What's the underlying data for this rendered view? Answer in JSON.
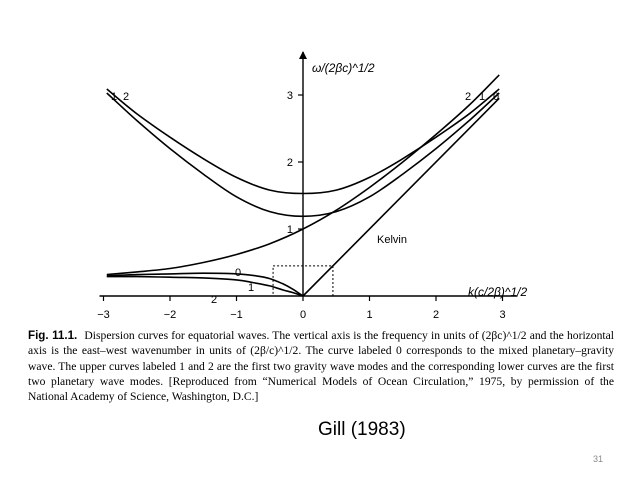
{
  "chart_data": {
    "type": "line",
    "title": "",
    "xlabel": "k(c/2β)^1/2",
    "ylabel": "ω/(2βc)^1/2",
    "xlim": [
      -3,
      3
    ],
    "ylim": [
      0,
      3.2
    ],
    "x_ticks": [
      -3,
      -2,
      -1,
      0,
      1,
      2,
      3
    ],
    "y_ticks": [
      1,
      2,
      3
    ],
    "grid": false,
    "series": [
      {
        "name": "2",
        "group": "gravity",
        "x": [
          -3,
          -2.5,
          -2,
          -1.5,
          -1,
          -0.5,
          0,
          0.5,
          1,
          1.5,
          2,
          2.5,
          3
        ],
        "y": [
          3.09,
          2.72,
          2.37,
          2.05,
          1.77,
          1.58,
          1.53,
          1.58,
          1.77,
          2.05,
          2.37,
          2.72,
          3.09
        ]
      },
      {
        "name": "1",
        "group": "gravity",
        "x": [
          -3,
          -2.5,
          -2,
          -1.5,
          -1,
          -0.5,
          0,
          0.5,
          1,
          1.5,
          2,
          2.5,
          3
        ],
        "y": [
          3.03,
          2.62,
          2.2,
          1.82,
          1.48,
          1.26,
          1.19,
          1.26,
          1.48,
          1.82,
          2.2,
          2.62,
          3.03
        ]
      },
      {
        "name": "0",
        "group": "mixed",
        "x": [
          -3,
          -2.5,
          -2,
          -1.5,
          -1,
          -0.5,
          0,
          0.5,
          1,
          1.5,
          2,
          2.5,
          3
        ],
        "y": [
          0.32,
          0.36,
          0.41,
          0.5,
          0.62,
          0.78,
          1.0,
          1.28,
          1.62,
          2.0,
          2.41,
          2.85,
          3.3
        ]
      },
      {
        "name": "Kelvin",
        "group": "kelvin",
        "x": [
          0,
          3.2
        ],
        "y": [
          0,
          3.2
        ]
      },
      {
        "name": "1",
        "group": "planetary",
        "x": [
          -3,
          -2.5,
          -2,
          -1.5,
          -1,
          -0.7,
          -0.5,
          -0.3,
          -0.15,
          0
        ],
        "y": [
          0.3,
          0.32,
          0.33,
          0.34,
          0.33,
          0.3,
          0.26,
          0.18,
          0.1,
          0
        ]
      },
      {
        "name": "2",
        "group": "planetary",
        "x": [
          -3,
          -2.5,
          -2,
          -1.5,
          -1,
          -0.75,
          -0.5,
          -0.3,
          -0.15,
          0
        ],
        "y": [
          0.29,
          0.29,
          0.28,
          0.27,
          0.24,
          0.2,
          0.15,
          0.09,
          0.05,
          0
        ]
      }
    ],
    "box": {
      "x": [
        -0.45,
        0.45
      ],
      "y": [
        0,
        0.45
      ]
    },
    "labels": {
      "top_left": [
        "1",
        "2"
      ],
      "top_right": [
        "2",
        "1",
        "0"
      ],
      "curve_0": "0",
      "kelvin": "Kelvin",
      "planetary_1": "1",
      "planetary_2": "2"
    }
  },
  "caption": {
    "figure_number": "Fig. 11.1.",
    "text": "Dispersion curves for equatorial waves. The vertical axis is the frequency in units of (2βc)^1/2 and the horizontal axis is the east–west wavenumber in units of (2β/c)^1/2. The curve labeled 0 corresponds to the mixed planetary–gravity wave. The upper curves labeled 1 and 2 are the first two gravity wave modes and the corresponding lower curves are the first two planetary wave modes. [Reproduced from “Numerical Models of Ocean Circulation,” 1975, by permission of the National Academy of Science, Washington, D.C.]"
  },
  "attribution": "Gill (1983)",
  "slide_number": "31"
}
